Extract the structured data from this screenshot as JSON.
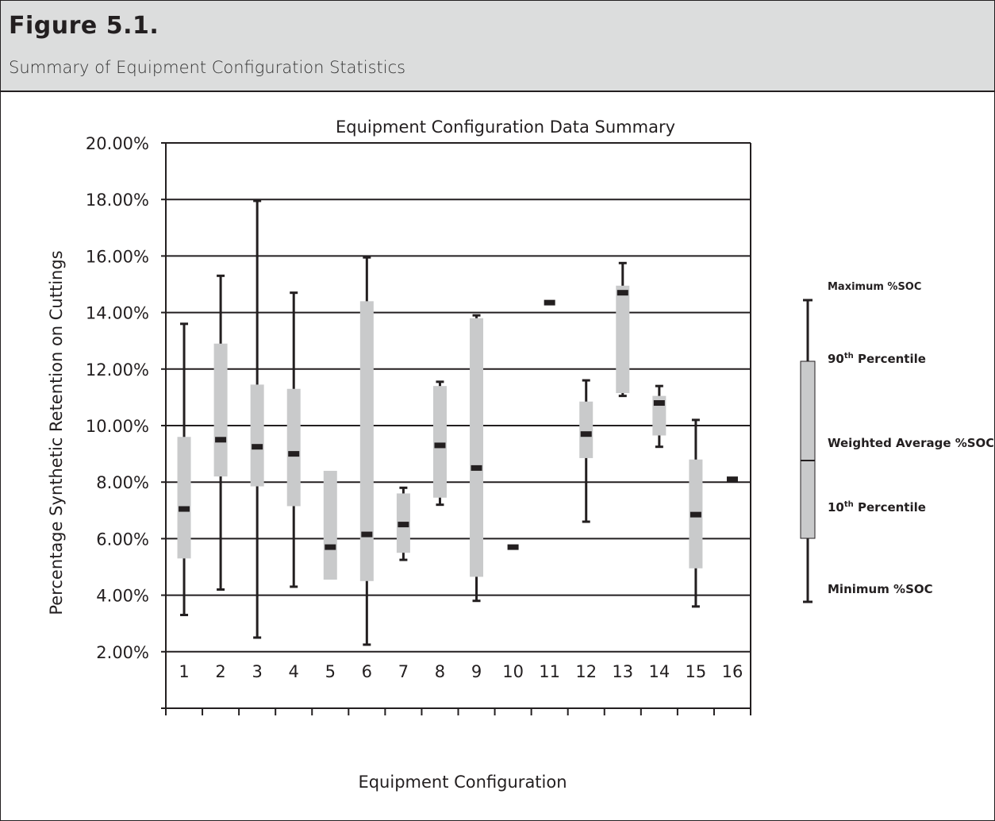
{
  "figure": {
    "label": "Figure 5.1.",
    "caption": "Summary of Equipment Configuration Statistics"
  },
  "chart_data": {
    "type": "boxplot",
    "title": "Equipment Configuration Data Summary",
    "xlabel": "Equipment Configuration",
    "ylabel": "Percentage Synthetic Retention on Cuttings",
    "ylim": [
      0,
      20
    ],
    "y_ticks": [
      2,
      4,
      6,
      8,
      10,
      12,
      14,
      16,
      18,
      20
    ],
    "y_tick_labels": [
      "2.00%",
      "4.00%",
      "6.00%",
      "8.00%",
      "10.00%",
      "12.00%",
      "14.00%",
      "16.00%",
      "18.00%",
      "20.00%"
    ],
    "grid": "horizontal",
    "categories": [
      "1",
      "2",
      "3",
      "4",
      "5",
      "6",
      "7",
      "8",
      "9",
      "10",
      "11",
      "12",
      "13",
      "14",
      "15",
      "16"
    ],
    "series": [
      {
        "config": "1",
        "min": 3.3,
        "p10": 5.3,
        "avg": 7.05,
        "p90": 9.6,
        "max": 13.6
      },
      {
        "config": "2",
        "min": 4.2,
        "p10": 8.2,
        "avg": 9.5,
        "p90": 12.9,
        "max": 15.3
      },
      {
        "config": "3",
        "min": 2.5,
        "p10": 7.85,
        "avg": 9.25,
        "p90": 11.45,
        "max": 17.95
      },
      {
        "config": "4",
        "min": 4.3,
        "p10": 7.15,
        "avg": 9.0,
        "p90": 11.3,
        "max": 14.7
      },
      {
        "config": "5",
        "min": null,
        "p10": 4.55,
        "avg": 5.7,
        "p90": 8.4,
        "max": null
      },
      {
        "config": "6",
        "min": 2.25,
        "p10": 4.5,
        "avg": 6.15,
        "p90": 14.4,
        "max": 15.95
      },
      {
        "config": "7",
        "min": 5.25,
        "p10": 5.5,
        "avg": 6.5,
        "p90": 7.6,
        "max": 7.8
      },
      {
        "config": "8",
        "min": 7.2,
        "p10": 7.45,
        "avg": 9.3,
        "p90": 11.4,
        "max": 11.55
      },
      {
        "config": "9",
        "min": 3.8,
        "p10": 4.65,
        "avg": 8.5,
        "p90": 13.8,
        "max": 13.9
      },
      {
        "config": "10",
        "min": null,
        "p10": null,
        "avg": 5.7,
        "p90": null,
        "max": null
      },
      {
        "config": "11",
        "min": null,
        "p10": null,
        "avg": 14.35,
        "p90": null,
        "max": null
      },
      {
        "config": "12",
        "min": 6.6,
        "p10": 8.85,
        "avg": 9.7,
        "p90": 10.85,
        "max": 11.6
      },
      {
        "config": "13",
        "min": 11.05,
        "p10": 11.15,
        "avg": 14.7,
        "p90": 14.95,
        "max": 15.75
      },
      {
        "config": "14",
        "min": 9.25,
        "p10": 9.65,
        "avg": 10.8,
        "p90": 11.05,
        "max": 11.4
      },
      {
        "config": "15",
        "min": 3.6,
        "p10": 4.95,
        "avg": 6.85,
        "p90": 8.8,
        "max": 10.2
      },
      {
        "config": "16",
        "min": null,
        "p10": null,
        "avg": 8.1,
        "p90": null,
        "max": null
      }
    ],
    "legend": {
      "placement": "right",
      "max_label": "Maximum %SOC",
      "p90_label": "90",
      "p90_sup": "th",
      "p90_suffix": " Percentile",
      "avg_label": "Weighted Average %SOC",
      "p10_label": "10",
      "p10_sup": "th",
      "p10_suffix": " Percentile",
      "min_label": "Minimum %SOC"
    },
    "colors": {
      "box": "#c9cacb",
      "line": "#231f20",
      "header": "#dcdddd"
    }
  }
}
